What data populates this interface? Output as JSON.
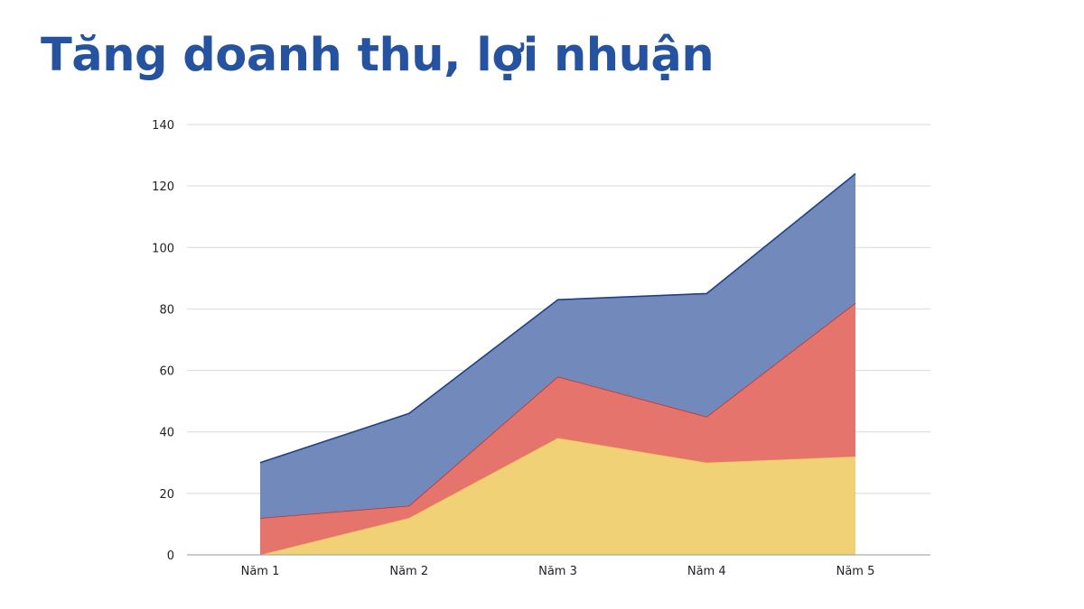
{
  "slide": {
    "title": "Tăng doanh thu, lợi nhuận"
  },
  "colors": {
    "title": "#2553a0",
    "series": [
      "#f0d176",
      "#e5756c",
      "#7189bb"
    ],
    "series_stroke": [
      "#f2c75c",
      "#c9302b",
      "#1f4089"
    ],
    "grid": "#d9d9d9",
    "axis": "#9a9a9a"
  },
  "chart_data": {
    "type": "area",
    "stacked": true,
    "categories": [
      "Năm 1",
      "Năm 2",
      "Năm 3",
      "Năm 4",
      "Năm 5"
    ],
    "series": [
      {
        "values": [
          0,
          12,
          38,
          30,
          32
        ]
      },
      {
        "values": [
          12,
          4,
          20,
          15,
          50
        ]
      },
      {
        "values": [
          18,
          30,
          25,
          40,
          42
        ]
      }
    ],
    "ylim": [
      0,
      140
    ],
    "yticks": [
      0,
      20,
      40,
      60,
      80,
      100,
      120,
      140
    ],
    "grid": true,
    "legend": "none",
    "title": "",
    "xlabel": "",
    "ylabel": ""
  }
}
